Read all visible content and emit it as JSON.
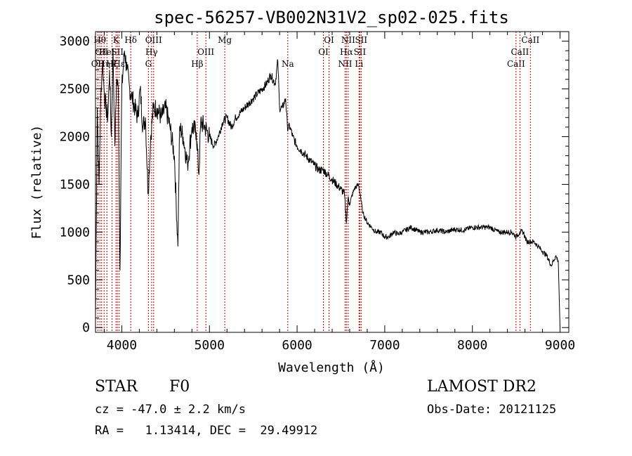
{
  "chart_data": {
    "type": "line",
    "title": "spec-56257-VB002N31V2_sp02-025.fits",
    "xlabel": "Wavelength (Å)",
    "ylabel": "Flux (relative)",
    "xlim": [
      3700,
      9100
    ],
    "ylim": [
      -50,
      3100
    ],
    "x_ticks": [
      4000,
      5000,
      6000,
      7000,
      8000,
      9000
    ],
    "y_ticks": [
      0,
      500,
      1000,
      1500,
      2000,
      2500,
      3000
    ],
    "grid": false,
    "series": [
      {
        "x": [
          3700,
          3720,
          3740,
          3760,
          3780,
          3800,
          3820,
          3840,
          3860,
          3880,
          3900,
          3920,
          3940,
          3960,
          3980,
          4000,
          4030,
          4060,
          4090,
          4120,
          4150,
          4180,
          4210,
          4240,
          4270,
          4300,
          4330,
          4360,
          4400,
          4450,
          4500,
          4550,
          4600,
          4640,
          4660,
          4700,
          4750,
          4800,
          4850,
          4880,
          4900,
          4950,
          5000,
          5050,
          5100,
          5150,
          5200,
          5250,
          5300,
          5350,
          5400,
          5450,
          5500,
          5550,
          5600,
          5650,
          5700,
          5750,
          5780,
          5800,
          5830,
          5870,
          5890,
          5920,
          5950,
          6000,
          6050,
          6100,
          6150,
          6200,
          6250,
          6300,
          6350,
          6400,
          6450,
          6500,
          6540,
          6563,
          6580,
          6600,
          6650,
          6700,
          6720,
          6750,
          6800,
          6850,
          6900,
          6950,
          7000,
          7050,
          7100,
          7150,
          7200,
          7300,
          7400,
          7500,
          7600,
          7700,
          7800,
          7900,
          8000,
          8100,
          8200,
          8300,
          8400,
          8450,
          8500,
          8540,
          8580,
          8620,
          8660,
          8700,
          8750,
          8800,
          8850,
          8900,
          8950,
          8980,
          9000
        ],
        "y": [
          100,
          2300,
          1500,
          2400,
          2800,
          2450,
          2300,
          2200,
          2700,
          2000,
          2900,
          1900,
          2600,
          2500,
          600,
          2500,
          2900,
          2700,
          2500,
          2400,
          2300,
          2200,
          2500,
          2100,
          2200,
          1400,
          2000,
          2300,
          2300,
          2200,
          2300,
          2100,
          1800,
          850,
          2100,
          2000,
          1700,
          2100,
          2050,
          1600,
          2150,
          2100,
          2000,
          1900,
          2000,
          2150,
          2200,
          2100,
          2200,
          2250,
          2300,
          2350,
          2400,
          2450,
          2500,
          2550,
          2650,
          2550,
          2800,
          2300,
          2300,
          2400,
          2100,
          2100,
          2000,
          1900,
          1850,
          1800,
          1750,
          1700,
          1650,
          1650,
          1600,
          1550,
          1500,
          1450,
          1400,
          1100,
          1350,
          1300,
          1450,
          1500,
          1400,
          1200,
          1100,
          1050,
          1000,
          1000,
          950,
          950,
          1000,
          980,
          1000,
          1050,
          1000,
          1000,
          1020,
          1000,
          1030,
          1020,
          1050,
          1050,
          1050,
          1000,
          1000,
          1000,
          950,
          1000,
          1000,
          900,
          900,
          900,
          850,
          800,
          750,
          650,
          750,
          700,
          0
        ]
      }
    ],
    "lines": [
      {
        "wavelength": 3727,
        "label": "OII",
        "row": 2
      },
      {
        "wavelength": 3750,
        "label": "Hθ",
        "row": 0
      },
      {
        "wavelength": 3770,
        "label": "OII",
        "row": 1
      },
      {
        "wavelength": 3798,
        "label": "Hη",
        "row": 2
      },
      {
        "wavelength": 3830,
        "label": "HeI",
        "row": 1
      },
      {
        "wavelength": 3889,
        "label": "Hζ",
        "row": 2
      },
      {
        "wavelength": 3934,
        "label": "K",
        "row": 0
      },
      {
        "wavelength": 3950,
        "label": "SII",
        "row": 1
      },
      {
        "wavelength": 3970,
        "label": "Hε",
        "row": 2
      },
      {
        "wavelength": 4102,
        "label": "Hδ",
        "row": 0
      },
      {
        "wavelength": 4304,
        "label": "G",
        "row": 2
      },
      {
        "wavelength": 4340,
        "label": "Hγ",
        "row": 1
      },
      {
        "wavelength": 4363,
        "label": "OIII",
        "row": 0
      },
      {
        "wavelength": 4861,
        "label": "Hβ",
        "row": 2
      },
      {
        "wavelength": 4959,
        "label": "OIII",
        "row": 1
      },
      {
        "wavelength": 5175,
        "label": "Mg",
        "row": 0
      },
      {
        "wavelength": 5894,
        "label": "Na",
        "row": 2
      },
      {
        "wavelength": 6300,
        "label": "OI",
        "row": 1
      },
      {
        "wavelength": 6364,
        "label": "OI",
        "row": 0
      },
      {
        "wavelength": 6548,
        "label": "NII",
        "row": 2
      },
      {
        "wavelength": 6563,
        "label": "Hα",
        "row": 1
      },
      {
        "wavelength": 6583,
        "label": "NII",
        "row": 0
      },
      {
        "wavelength": 6707,
        "label": "Li",
        "row": 2
      },
      {
        "wavelength": 6716,
        "label": "SII",
        "row": 1
      },
      {
        "wavelength": 6731,
        "label": "SII",
        "row": 0
      },
      {
        "wavelength": 8498,
        "label": "CaII",
        "row": 2
      },
      {
        "wavelength": 8542,
        "label": "CaII",
        "row": 1
      },
      {
        "wavelength": 8662,
        "label": "CaII",
        "row": 0
      }
    ],
    "line_color": "#cc0000"
  },
  "info": {
    "object_class": "STAR",
    "subclass": "F0",
    "survey": "LAMOST DR2",
    "cz": "cz = -47.0 ± 2.2 km/s",
    "obs_date": "Obs-Date: 20121125",
    "coords": "RA =   1.13414, DEC =  29.49912"
  }
}
